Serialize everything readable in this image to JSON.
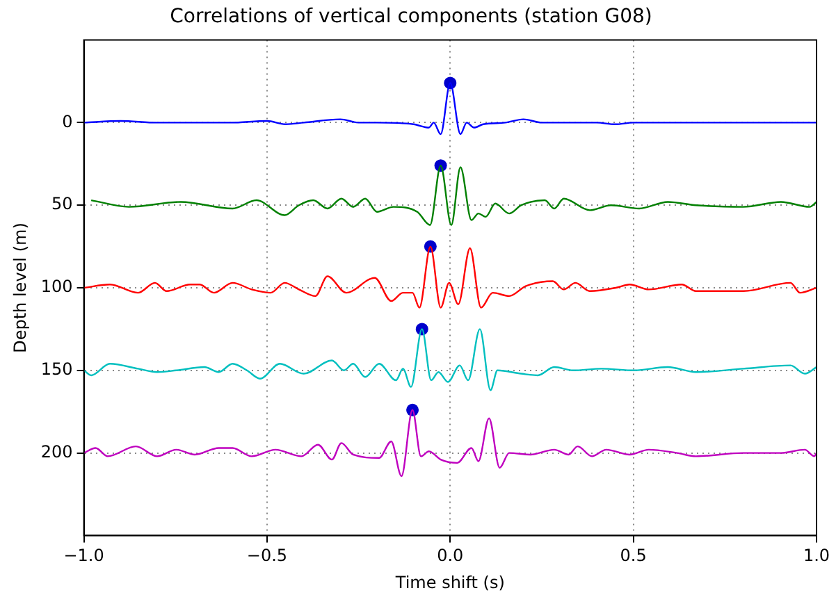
{
  "chart_data": {
    "type": "line",
    "title": "Correlations of vertical components (station G08)",
    "xlabel": "Time shift (s)",
    "ylabel": "Depth level (m)",
    "xlim": [
      -1.0,
      1.0
    ],
    "xticks": [
      {
        "value": -1.0,
        "label": "−1.0"
      },
      {
        "value": -0.5,
        "label": "−0.5"
      },
      {
        "value": 0.0,
        "label": "0.0"
      },
      {
        "value": 0.5,
        "label": "0.5"
      },
      {
        "value": 1.0,
        "label": "1.0"
      }
    ],
    "ylim": [
      250,
      -50
    ],
    "yticks": [
      0,
      50,
      100,
      150,
      200
    ],
    "grid": true,
    "legend": false,
    "series": [
      {
        "type": "line",
        "color": "#0000ff",
        "marker": "none",
        "line_style": "solid",
        "x": [
          -1.0,
          -0.9,
          -0.8,
          -0.7,
          -0.6,
          -0.5,
          -0.45,
          -0.4,
          -0.3,
          -0.25,
          -0.2,
          -0.1,
          -0.058,
          -0.045,
          -0.026,
          0.0,
          0.028,
          0.045,
          0.065,
          0.09,
          0.15,
          0.2,
          0.25,
          0.3,
          0.4,
          0.45,
          0.5,
          0.6,
          0.7,
          0.8,
          0.9,
          1.0
        ],
        "values": [
          0,
          -1,
          0,
          0,
          0,
          -1,
          1,
          0,
          -2,
          0,
          0,
          1,
          3,
          0,
          7,
          -24,
          7,
          0,
          3,
          1,
          0,
          -2,
          0,
          0,
          0,
          1,
          0,
          0,
          0,
          0,
          0,
          0
        ]
      },
      {
        "type": "line",
        "color": "#008000",
        "marker": "none",
        "line_style": "solid",
        "x": [
          -0.98,
          -0.877,
          -0.735,
          -0.594,
          -0.529,
          -0.452,
          -0.413,
          -0.374,
          -0.335,
          -0.297,
          -0.265,
          -0.232,
          -0.2,
          -0.155,
          -0.09,
          -0.055,
          -0.026,
          0.003,
          0.028,
          0.058,
          0.077,
          0.097,
          0.123,
          0.161,
          0.194,
          0.258,
          0.284,
          0.31,
          0.381,
          0.439,
          0.516,
          0.594,
          0.671,
          0.8,
          0.903,
          0.981,
          1.0
        ],
        "values": [
          47,
          51,
          48,
          52,
          47,
          56,
          50,
          47,
          52,
          46,
          51,
          46,
          54,
          51,
          54,
          62,
          26,
          62,
          27,
          59,
          55,
          57,
          49,
          55,
          50,
          47,
          52,
          46,
          53,
          50,
          52,
          48,
          50,
          51,
          48,
          51,
          48
        ]
      },
      {
        "type": "line",
        "color": "#ff0000",
        "marker": "none",
        "line_style": "solid",
        "x": [
          -1.0,
          -0.929,
          -0.852,
          -0.806,
          -0.774,
          -0.71,
          -0.684,
          -0.645,
          -0.594,
          -0.542,
          -0.49,
          -0.452,
          -0.413,
          -0.368,
          -0.335,
          -0.284,
          -0.206,
          -0.161,
          -0.129,
          -0.103,
          -0.084,
          -0.054,
          -0.026,
          -0.003,
          0.022,
          0.054,
          0.084,
          0.116,
          0.161,
          0.206,
          0.28,
          0.31,
          0.342,
          0.381,
          0.452,
          0.49,
          0.542,
          0.632,
          0.671,
          0.8,
          0.929,
          0.955,
          1.0
        ],
        "values": [
          100,
          98,
          103,
          97,
          102,
          98,
          98,
          103,
          97,
          101,
          103,
          97,
          101,
          105,
          93,
          103,
          94,
          108,
          103,
          103,
          112,
          75,
          112,
          97,
          110,
          76,
          112,
          103,
          105,
          99,
          96,
          101,
          97,
          102,
          100,
          98,
          101,
          98,
          102,
          102,
          97,
          103,
          100
        ]
      },
      {
        "type": "line",
        "color": "#00bfbf",
        "marker": "none",
        "line_style": "solid",
        "x": [
          -1.0,
          -0.98,
          -0.929,
          -0.852,
          -0.8,
          -0.748,
          -0.671,
          -0.632,
          -0.594,
          -0.555,
          -0.519,
          -0.465,
          -0.4,
          -0.323,
          -0.29,
          -0.265,
          -0.232,
          -0.194,
          -0.148,
          -0.129,
          -0.107,
          -0.077,
          -0.052,
          -0.032,
          -0.006,
          0.026,
          0.049,
          0.081,
          0.11,
          0.129,
          0.194,
          0.239,
          0.284,
          0.335,
          0.413,
          0.503,
          0.594,
          0.671,
          0.8,
          0.929,
          0.968,
          1.0
        ],
        "values": [
          150,
          153,
          146,
          149,
          151,
          150,
          148,
          151,
          146,
          150,
          155,
          146,
          152,
          144,
          150,
          146,
          154,
          146,
          156,
          149,
          160,
          125,
          156,
          151,
          157,
          147,
          156,
          125,
          162,
          150,
          152,
          153,
          148,
          150,
          149,
          150,
          148,
          151,
          149,
          147,
          152,
          148
        ]
      },
      {
        "type": "line",
        "color": "#bf00bf",
        "marker": "none",
        "line_style": "solid",
        "x": [
          -1.0,
          -0.968,
          -0.935,
          -0.858,
          -0.8,
          -0.748,
          -0.697,
          -0.632,
          -0.594,
          -0.542,
          -0.477,
          -0.406,
          -0.361,
          -0.323,
          -0.297,
          -0.265,
          -0.194,
          -0.161,
          -0.133,
          -0.103,
          -0.08,
          -0.058,
          -0.026,
          0.019,
          0.058,
          0.077,
          0.106,
          0.135,
          0.161,
          0.219,
          0.284,
          0.323,
          0.348,
          0.387,
          0.426,
          0.49,
          0.542,
          0.619,
          0.671,
          0.8,
          0.903,
          0.968,
          0.994,
          1.0
        ],
        "values": [
          200,
          197,
          202,
          196,
          202,
          198,
          201,
          197,
          197,
          202,
          198,
          202,
          195,
          204,
          194,
          201,
          203,
          193,
          214,
          174,
          202,
          199,
          204,
          206,
          197,
          205,
          179,
          209,
          200,
          201,
          198,
          201,
          196,
          202,
          198,
          201,
          198,
          200,
          202,
          200,
          200,
          198,
          202,
          200
        ]
      },
      {
        "type": "scatter",
        "color": "#0000cc",
        "marker": "circle",
        "x": [
          0.0,
          -0.026,
          -0.054,
          -0.077,
          -0.103
        ],
        "values": [
          -24,
          26,
          75,
          125,
          174
        ]
      }
    ]
  }
}
